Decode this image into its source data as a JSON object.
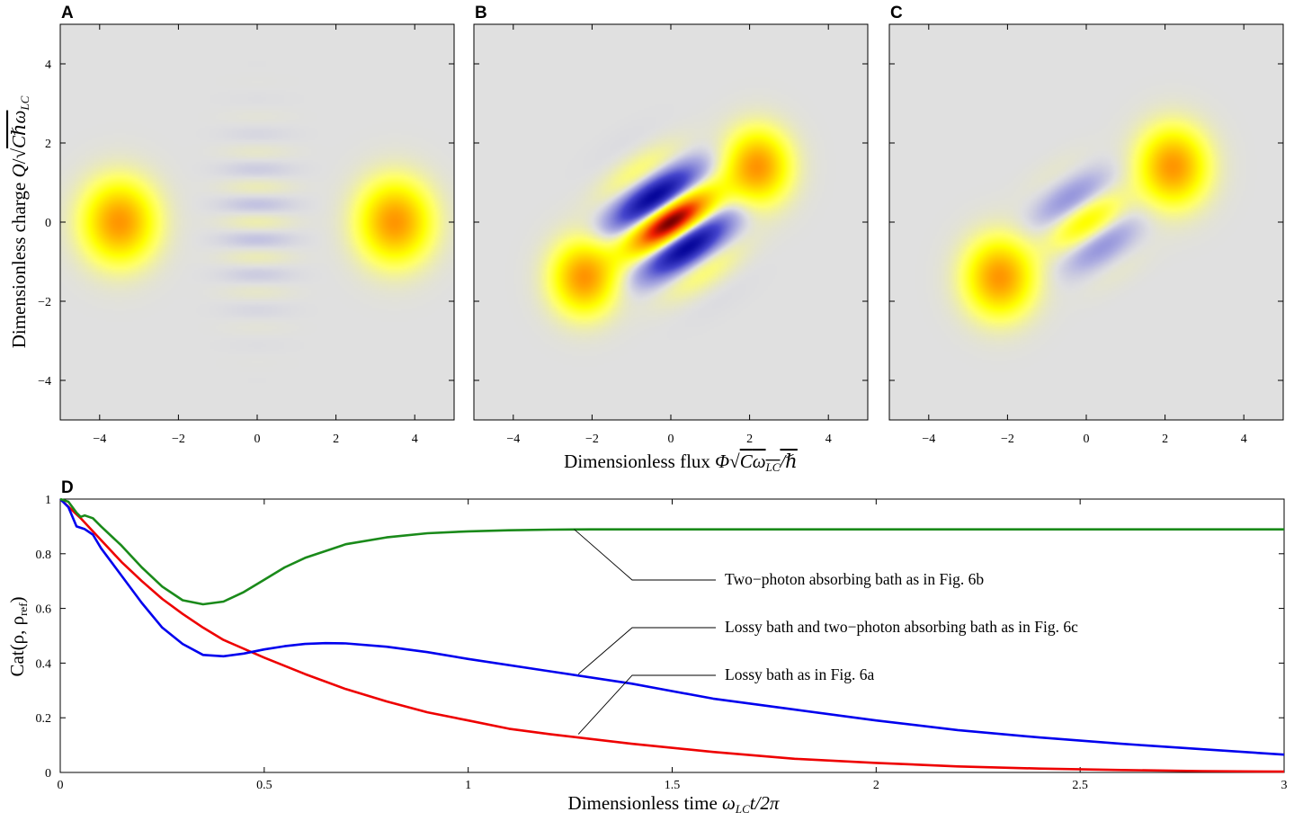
{
  "chart_data": [
    {
      "type": "heatmap",
      "panel": "A",
      "description_kind": "Wigner function",
      "xlim": [
        -5,
        5
      ],
      "ylim": [
        -5,
        5
      ],
      "xticks": [
        -4,
        -2,
        0,
        2,
        4
      ],
      "yticks": [
        -4,
        -2,
        0,
        2,
        4
      ],
      "blobs": [
        {
          "x": -3.5,
          "y": 0,
          "amp": 0.55,
          "sx": 0.85,
          "sy": 0.95
        },
        {
          "x": 3.5,
          "y": 0,
          "amp": 0.55,
          "sx": 0.85,
          "sy": 0.95
        }
      ],
      "fringes": {
        "cx": 0,
        "cy": 0,
        "angle": 0,
        "amp": 0.05,
        "k": 7.0,
        "su": 0.9,
        "sv": 1.0
      }
    },
    {
      "type": "heatmap",
      "panel": "B",
      "description_kind": "Wigner function",
      "xlim": [
        -5,
        5
      ],
      "ylim": [
        -5,
        5
      ],
      "xticks": [
        -4,
        -2,
        0,
        2,
        4
      ],
      "yticks": [
        -4,
        -2,
        0,
        2,
        4
      ],
      "blobs": [
        {
          "x": -2.2,
          "y": -1.4,
          "amp": 0.55,
          "sx": 0.75,
          "sy": 0.85
        },
        {
          "x": 2.2,
          "y": 1.4,
          "amp": 0.55,
          "sx": 0.75,
          "sy": 0.85
        }
      ],
      "fringes": {
        "cx": 0,
        "cy": 0,
        "angle": 33,
        "amp": 1.0,
        "k": 3.6,
        "su": 1.15,
        "sv": 0.55
      }
    },
    {
      "type": "heatmap",
      "panel": "C",
      "description_kind": "Wigner function",
      "xlim": [
        -5,
        5
      ],
      "ylim": [
        -5,
        5
      ],
      "xticks": [
        -4,
        -2,
        0,
        2,
        4
      ],
      "yticks": [
        -4,
        -2,
        0,
        2,
        4
      ],
      "blobs": [
        {
          "x": -2.2,
          "y": -1.4,
          "amp": 0.55,
          "sx": 0.8,
          "sy": 0.9
        },
        {
          "x": 2.2,
          "y": 1.4,
          "amp": 0.55,
          "sx": 0.8,
          "sy": 0.9
        }
      ],
      "fringes": {
        "cx": 0,
        "cy": 0,
        "angle": 33,
        "amp": 0.25,
        "k": 3.6,
        "su": 1.0,
        "sv": 0.5
      }
    },
    {
      "type": "line",
      "panel": "D",
      "xlim": [
        0,
        3
      ],
      "ylim": [
        0,
        1
      ],
      "xticks": [
        0,
        0.5,
        1,
        1.5,
        2,
        2.5,
        3
      ],
      "xtick_labels": [
        "0",
        "0.5",
        "1",
        "1.5",
        "2",
        "2.5",
        "3"
      ],
      "yticks": [
        0,
        0.2,
        0.4,
        0.6,
        0.8,
        1
      ],
      "ytick_labels": [
        "0",
        "0.2",
        "0.4",
        "0.6",
        "0.8",
        "1"
      ],
      "series": [
        {
          "name": "Two−photon absorbing bath as in Fig. 6b",
          "color": "#1a8a1a",
          "points": [
            [
              0,
              1.0
            ],
            [
              0.02,
              0.99
            ],
            [
              0.04,
              0.95
            ],
            [
              0.05,
              0.935
            ],
            [
              0.06,
              0.94
            ],
            [
              0.08,
              0.93
            ],
            [
              0.1,
              0.9
            ],
            [
              0.15,
              0.83
            ],
            [
              0.2,
              0.75
            ],
            [
              0.25,
              0.68
            ],
            [
              0.3,
              0.63
            ],
            [
              0.35,
              0.615
            ],
            [
              0.4,
              0.625
            ],
            [
              0.45,
              0.66
            ],
            [
              0.5,
              0.705
            ],
            [
              0.55,
              0.75
            ],
            [
              0.6,
              0.785
            ],
            [
              0.7,
              0.835
            ],
            [
              0.8,
              0.86
            ],
            [
              0.9,
              0.875
            ],
            [
              1.0,
              0.882
            ],
            [
              1.1,
              0.886
            ],
            [
              1.2,
              0.888
            ],
            [
              1.3,
              0.889
            ],
            [
              1.5,
              0.889
            ],
            [
              2.0,
              0.889
            ],
            [
              2.5,
              0.889
            ],
            [
              3.0,
              0.889
            ]
          ],
          "callout": [
            1.26,
            0.889
          ]
        },
        {
          "name": "Lossy bath and two−photon absorbing bath as in Fig. 6c",
          "color": "#0000ee",
          "points": [
            [
              0,
              1.0
            ],
            [
              0.02,
              0.97
            ],
            [
              0.04,
              0.9
            ],
            [
              0.06,
              0.89
            ],
            [
              0.08,
              0.87
            ],
            [
              0.1,
              0.82
            ],
            [
              0.15,
              0.72
            ],
            [
              0.2,
              0.62
            ],
            [
              0.25,
              0.53
            ],
            [
              0.3,
              0.47
            ],
            [
              0.35,
              0.43
            ],
            [
              0.4,
              0.425
            ],
            [
              0.45,
              0.435
            ],
            [
              0.5,
              0.45
            ],
            [
              0.55,
              0.462
            ],
            [
              0.6,
              0.47
            ],
            [
              0.65,
              0.473
            ],
            [
              0.7,
              0.472
            ],
            [
              0.8,
              0.46
            ],
            [
              0.9,
              0.44
            ],
            [
              1.0,
              0.415
            ],
            [
              1.2,
              0.37
            ],
            [
              1.4,
              0.325
            ],
            [
              1.6,
              0.27
            ],
            [
              1.8,
              0.23
            ],
            [
              2.0,
              0.19
            ],
            [
              2.2,
              0.155
            ],
            [
              2.4,
              0.128
            ],
            [
              2.6,
              0.105
            ],
            [
              2.8,
              0.085
            ],
            [
              3.0,
              0.065
            ]
          ],
          "callout": [
            1.27,
            0.36
          ]
        },
        {
          "name": "Lossy bath as in Fig. 6a",
          "color": "#ee0000",
          "points": [
            [
              0,
              1.0
            ],
            [
              0.05,
              0.93
            ],
            [
              0.1,
              0.85
            ],
            [
              0.15,
              0.77
            ],
            [
              0.2,
              0.7
            ],
            [
              0.25,
              0.635
            ],
            [
              0.3,
              0.58
            ],
            [
              0.35,
              0.53
            ],
            [
              0.4,
              0.485
            ],
            [
              0.5,
              0.42
            ],
            [
              0.6,
              0.36
            ],
            [
              0.7,
              0.305
            ],
            [
              0.8,
              0.26
            ],
            [
              0.9,
              0.22
            ],
            [
              1.0,
              0.19
            ],
            [
              1.1,
              0.16
            ],
            [
              1.2,
              0.14
            ],
            [
              1.4,
              0.105
            ],
            [
              1.6,
              0.075
            ],
            [
              1.8,
              0.05
            ],
            [
              2.0,
              0.035
            ],
            [
              2.2,
              0.022
            ],
            [
              2.4,
              0.014
            ],
            [
              2.6,
              0.009
            ],
            [
              2.8,
              0.005
            ],
            [
              3.0,
              0.003
            ]
          ],
          "callout": [
            1.27,
            0.14
          ]
        }
      ]
    }
  ],
  "panels": {
    "a": {
      "letter": "A"
    },
    "b": {
      "letter": "B"
    },
    "c": {
      "letter": "C"
    },
    "d": {
      "letter": "D"
    }
  },
  "labels": {
    "top_xlabel_text": "Dimensionless flux",
    "top_xlabel_phi": "Φ",
    "top_xlabel_C": "C",
    "top_xlabel_omega": "ω",
    "top_xlabel_sub": "LC",
    "top_xlabel_hbar": "/ℏ",
    "top_ylabel_text": "Dimensionless charge",
    "top_ylabel_Q": "Q",
    "top_ylabel_slash": "/",
    "top_ylabel_Chomega": "Cℏω",
    "top_ylabel_sub": "LC",
    "bottom_xlabel_text": "Dimensionless time",
    "bottom_xlabel_omega": "ω",
    "bottom_xlabel_sub": "LC",
    "bottom_xlabel_tail": "t/2π",
    "bottom_ylabel_main": "Cat(ρ, ρ",
    "bottom_ylabel_sub": "ref",
    "bottom_ylabel_close": ")"
  }
}
